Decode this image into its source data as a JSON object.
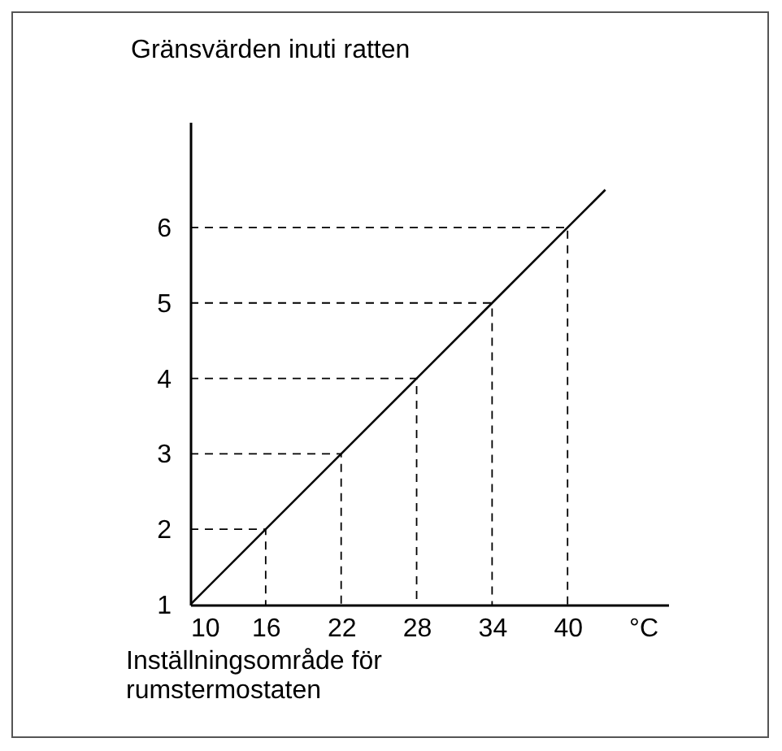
{
  "chart_data": {
    "type": "line",
    "xlabel": "Inställningsområde för rumstermostaten",
    "ylabel": "Gränsvärden inuti ratten",
    "x": [
      10,
      16,
      22,
      28,
      34,
      40,
      43
    ],
    "series": [
      {
        "color": "#000000",
        "values": [
          1,
          2,
          3,
          4,
          5,
          6,
          6.5
        ]
      },
      {
        "color": "#000000",
        "line_style": "dashed",
        "x": [
          10,
          16,
          16
        ],
        "values": [
          2,
          2,
          1
        ]
      },
      {
        "color": "#000000",
        "line_style": "dashed",
        "x": [
          10,
          22,
          22
        ],
        "values": [
          3,
          3,
          1
        ]
      },
      {
        "color": "#000000",
        "line_style": "dashed",
        "x": [
          10,
          28,
          28
        ],
        "values": [
          4,
          4,
          1
        ]
      },
      {
        "color": "#000000",
        "line_style": "dashed",
        "x": [
          10,
          34,
          34
        ],
        "values": [
          5,
          5,
          1
        ]
      },
      {
        "color": "#000000",
        "line_style": "dashed",
        "x": [
          10,
          40,
          40
        ],
        "values": [
          6,
          6,
          1
        ]
      }
    ],
    "xlim": [
      10,
      48
    ],
    "xticks": [
      10,
      16,
      22,
      28,
      34,
      40,
      {
        "value": 46,
        "label": "°C"
      }
    ],
    "ylim": [
      1,
      7.4
    ],
    "yticks": [
      1,
      2,
      3,
      4,
      5,
      6
    ]
  }
}
